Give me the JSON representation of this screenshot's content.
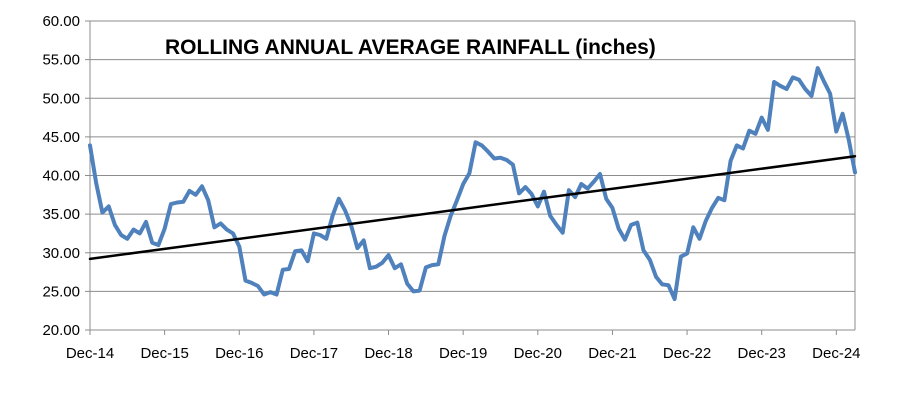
{
  "chart_data": {
    "type": "line",
    "title": "ROLLING ANNUAL AVERAGE RAINFALL (inches)",
    "xlabel": "",
    "ylabel": "",
    "ylim": [
      20,
      60
    ],
    "y_ticks": [
      "20.00",
      "25.00",
      "30.00",
      "35.00",
      "40.00",
      "45.00",
      "50.00",
      "55.00",
      "60.00"
    ],
    "y_tick_values": [
      20,
      25,
      30,
      35,
      40,
      45,
      50,
      55,
      60
    ],
    "x_tick_labels": [
      "Dec-14",
      "Dec-15",
      "Dec-16",
      "Dec-17",
      "Dec-18",
      "Dec-19",
      "Dec-20",
      "Dec-21",
      "Dec-22",
      "Dec-23",
      "Dec-24"
    ],
    "x_range": [
      0,
      123
    ],
    "grid": true,
    "series": [
      {
        "name": "Rolling annual average rainfall",
        "color": "#4f81bd",
        "x": [
          0,
          1,
          2,
          3,
          4,
          5,
          6,
          7,
          8,
          9,
          10,
          11,
          12,
          13,
          14,
          15,
          16,
          17,
          18,
          19,
          20,
          21,
          22,
          23,
          24,
          25,
          26,
          27,
          28,
          29,
          30,
          31,
          32,
          33,
          34,
          35,
          36,
          37,
          38,
          39,
          40,
          41,
          42,
          43,
          44,
          45,
          46,
          47,
          48,
          49,
          50,
          51,
          52,
          53,
          54,
          55,
          56,
          57,
          58,
          59,
          60,
          61,
          62,
          63,
          64,
          65,
          66,
          67,
          68,
          69,
          70,
          71,
          72,
          73,
          74,
          75,
          76,
          77,
          78,
          79,
          80,
          81,
          82,
          83,
          84,
          85,
          86,
          87,
          88,
          89,
          90,
          91,
          92,
          93,
          94,
          95,
          96,
          97,
          98,
          99,
          100,
          101,
          102,
          103,
          104,
          105,
          106,
          107,
          108,
          109,
          110,
          111,
          112,
          113,
          114,
          115,
          116,
          117,
          118,
          119,
          120,
          121,
          122,
          123
        ],
        "values": [
          43.9,
          39.0,
          35.2,
          36.0,
          33.6,
          32.3,
          31.8,
          33.0,
          32.5,
          34.0,
          31.3,
          31.0,
          33.1,
          36.3,
          36.5,
          36.6,
          38.0,
          37.5,
          38.6,
          36.8,
          33.3,
          33.8,
          33.0,
          32.5,
          30.8,
          26.4,
          26.1,
          25.7,
          24.6,
          24.9,
          24.6,
          27.8,
          27.9,
          30.2,
          30.3,
          28.9,
          32.5,
          32.3,
          31.8,
          34.8,
          37.0,
          35.5,
          33.5,
          30.6,
          31.6,
          28.0,
          28.2,
          28.7,
          29.7,
          28.0,
          28.5,
          26.0,
          25.0,
          25.1,
          28.1,
          28.4,
          28.5,
          32.2,
          34.8,
          36.8,
          38.9,
          40.3,
          44.3,
          43.9,
          43.1,
          42.2,
          42.3,
          42.0,
          41.4,
          37.7,
          38.5,
          37.6,
          36.0,
          37.9,
          34.8,
          33.6,
          32.6,
          38.1,
          37.2,
          38.9,
          38.3,
          39.2,
          40.2,
          37.0,
          35.8,
          33.1,
          31.7,
          33.6,
          33.9,
          30.3,
          29.1,
          26.9,
          25.9,
          25.8,
          24.0,
          29.5,
          29.9,
          33.3,
          31.8,
          34.1,
          35.8,
          37.1,
          36.8,
          41.9,
          43.9,
          43.5,
          45.8,
          45.4,
          47.5,
          45.9,
          52.1,
          51.6,
          51.2,
          52.7,
          52.4,
          51.2,
          50.3,
          53.9,
          52.2,
          50.6,
          45.7,
          48.0,
          44.6,
          40.4
        ]
      },
      {
        "name": "Linear trend",
        "color": "#000000",
        "x": [
          0,
          123
        ],
        "values": [
          29.2,
          42.5
        ]
      }
    ]
  }
}
